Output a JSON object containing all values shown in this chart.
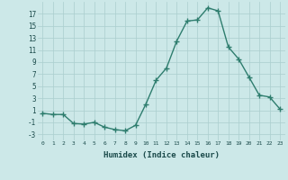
{
  "x": [
    0,
    1,
    2,
    3,
    4,
    5,
    6,
    7,
    8,
    9,
    10,
    11,
    12,
    13,
    14,
    15,
    16,
    17,
    18,
    19,
    20,
    21,
    22,
    23
  ],
  "y": [
    0.5,
    0.3,
    0.3,
    -1.2,
    -1.3,
    -1.0,
    -1.8,
    -2.2,
    -2.4,
    -1.5,
    2.0,
    6.0,
    8.0,
    12.5,
    15.8,
    16.0,
    18.0,
    17.5,
    11.5,
    9.5,
    6.5,
    3.5,
    3.2,
    1.2
  ],
  "line_color": "#2e7d6e",
  "marker": "+",
  "marker_size": 4,
  "xlabel": "Humidex (Indice chaleur)",
  "xlim": [
    -0.5,
    23.5
  ],
  "ylim": [
    -4,
    19
  ],
  "yticks": [
    -3,
    -1,
    1,
    3,
    5,
    7,
    9,
    11,
    13,
    15,
    17
  ],
  "xticks": [
    0,
    1,
    2,
    3,
    4,
    5,
    6,
    7,
    8,
    9,
    10,
    11,
    12,
    13,
    14,
    15,
    16,
    17,
    18,
    19,
    20,
    21,
    22,
    23
  ],
  "xtick_labels": [
    "0",
    "1",
    "2",
    "3",
    "4",
    "5",
    "6",
    "7",
    "8",
    "9",
    "10",
    "11",
    "12",
    "13",
    "14",
    "15",
    "16",
    "17",
    "18",
    "19",
    "20",
    "21",
    "22",
    "23"
  ],
  "bg_color": "#cce8e8",
  "grid_color": "#aacece",
  "line_width": 1.0
}
